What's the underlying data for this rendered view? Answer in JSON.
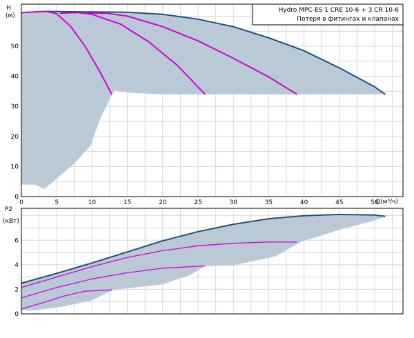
{
  "colors": {
    "envelope_fill": "#b9c9d6",
    "envelope_line": "#1f4f7f",
    "curve": "#d400d4",
    "grid": "#d6d6d6",
    "frame": "#000000"
  },
  "legend": {
    "title": "Hydro MPC-ES 1 CRE 10-6  +  3 CR 10-6",
    "subtitle": "Потеря в фитингах и клапанах"
  },
  "chart_data": [
    {
      "type": "line",
      "id": "head",
      "ylabel": "H",
      "yunit": "(м)",
      "xlabel": "Q(м³/ч)",
      "xlim": [
        0,
        54
      ],
      "ylim": [
        0,
        64
      ],
      "xticks": [
        0,
        5,
        10,
        15,
        20,
        25,
        30,
        35,
        40,
        45,
        50
      ],
      "yticks": [
        0,
        10,
        20,
        30,
        40,
        50
      ],
      "grid": true,
      "envelope_top": {
        "x": [
          0,
          3.5,
          6,
          10,
          15,
          20,
          25,
          30,
          35,
          40,
          45,
          50,
          51.5
        ],
        "y": [
          61.2,
          61.6,
          61.5,
          61.4,
          61.3,
          60.6,
          59.0,
          56.5,
          52.8,
          48.5,
          42.8,
          36.5,
          34.0
        ]
      },
      "envelope_bottom": {
        "x": [
          51.5,
          45,
          35,
          26,
          20,
          15.5,
          13.2,
          12.6,
          11,
          9.8,
          7.5,
          5,
          3.2,
          2,
          0
        ],
        "y": [
          34.0,
          34.0,
          34.0,
          34.0,
          34.0,
          34.5,
          35.3,
          33.0,
          25.0,
          17.0,
          11.0,
          6.0,
          2.5,
          4.0,
          4.0
        ]
      },
      "series": [
        {
          "x": [
            0,
            3.5,
            5,
            7,
            9,
            11,
            12.8
          ],
          "y": [
            61.2,
            61.6,
            60.8,
            56.5,
            50.0,
            42.0,
            34.0
          ]
        },
        {
          "x": [
            5.5,
            8,
            10,
            14,
            18,
            22,
            26
          ],
          "y": [
            61.0,
            61.2,
            60.6,
            57.4,
            51.5,
            43.8,
            34.0
          ]
        },
        {
          "x": [
            9,
            12,
            15,
            20,
            25,
            30,
            35,
            39
          ],
          "y": [
            61.0,
            61.0,
            60.0,
            56.5,
            51.8,
            46.0,
            39.8,
            34.0
          ]
        }
      ]
    },
    {
      "type": "line",
      "id": "power",
      "ylabel": "P2",
      "yunit": "(кВт)",
      "xlim": [
        0,
        54
      ],
      "ylim": [
        0,
        8.6
      ],
      "yticks": [
        0,
        2,
        4,
        6
      ],
      "grid": true,
      "envelope_top": {
        "x": [
          0,
          5,
          10,
          15,
          20,
          25,
          30,
          35,
          40,
          45,
          50,
          51.5
        ],
        "y": [
          2.5,
          3.3,
          4.15,
          5.05,
          5.95,
          6.7,
          7.3,
          7.75,
          8.0,
          8.1,
          8.05,
          7.95
        ]
      },
      "envelope_bottom": {
        "x": [
          51.5,
          50,
          45,
          39.5,
          36,
          30,
          26,
          24,
          20,
          13,
          10,
          6,
          2,
          0
        ],
        "y": [
          7.95,
          7.6,
          6.85,
          5.85,
          4.7,
          3.95,
          3.9,
          3.2,
          2.4,
          1.95,
          1.1,
          0.6,
          0.3,
          0.3
        ]
      },
      "series": [
        {
          "x": [
            0,
            3,
            6,
            9,
            12.8
          ],
          "y": [
            0.4,
            0.9,
            1.45,
            1.85,
            1.95
          ]
        },
        {
          "x": [
            0,
            5,
            10,
            15,
            20,
            25,
            26
          ],
          "y": [
            1.3,
            2.15,
            2.85,
            3.35,
            3.72,
            3.88,
            3.9
          ]
        },
        {
          "x": [
            0,
            5,
            10,
            15,
            20,
            25,
            30,
            35,
            39
          ],
          "y": [
            2.15,
            3.0,
            3.85,
            4.6,
            5.15,
            5.55,
            5.75,
            5.85,
            5.85
          ]
        }
      ]
    }
  ]
}
